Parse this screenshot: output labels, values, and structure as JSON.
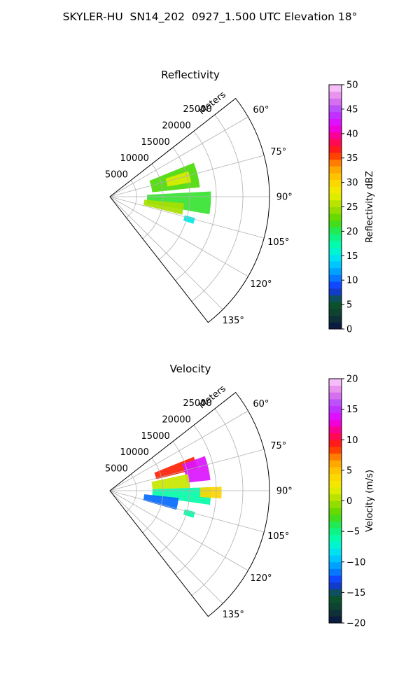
{
  "figure_title": "SKYLER-HU  SN14_202  0927_1.500 UTC Elevation 18°",
  "chart_data": [
    {
      "type": "polar-sector",
      "title": "Reflectivity",
      "range_axis_label": "Meters",
      "range_ticks": [
        5000,
        10000,
        15000,
        20000,
        25000
      ],
      "range_max": 30000,
      "azimuth_range_deg": [
        52,
        142
      ],
      "azimuth_tick_labels": [
        "60°",
        "75°",
        "90°",
        "105°",
        "120°",
        "135°"
      ],
      "azimuth_tick_values": [
        60,
        75,
        90,
        105,
        120,
        135
      ],
      "grid": true,
      "colorbar": {
        "label": "Reflectivity dBZ",
        "min": 0,
        "max": 50,
        "tick_values": [
          0,
          5,
          10,
          15,
          20,
          25,
          30,
          35,
          40,
          45,
          50
        ],
        "tick_labels": [
          "0",
          "5",
          "10",
          "15",
          "20",
          "25",
          "30",
          "35",
          "40",
          "45",
          "50"
        ],
        "color_stops": [
          "#0a1246",
          "#0f3b33",
          "#0a5a2a",
          "#1430ff",
          "#0090ff",
          "#00d8ff",
          "#00ffc0",
          "#12f070",
          "#52d800",
          "#a8e000",
          "#f0f000",
          "#ffd000",
          "#ff9a00",
          "#ff2400",
          "#ff0070",
          "#ee00ff",
          "#b040ff",
          "#e080ea",
          "#ffd0ff"
        ]
      },
      "echo_regions": [
        {
          "az": [
            68,
            84
          ],
          "range": [
            8000,
            17000
          ],
          "value": 22
        },
        {
          "az": [
            72,
            80
          ],
          "range": [
            11000,
            15500
          ],
          "value": 27
        },
        {
          "az": [
            87,
            100
          ],
          "range": [
            7000,
            19000
          ],
          "value": 21
        },
        {
          "az": [
            95,
            104
          ],
          "range": [
            6500,
            14000
          ],
          "value": 25
        },
        {
          "az": [
            104,
            108
          ],
          "range": [
            14500,
            16500
          ],
          "value": 15
        }
      ]
    },
    {
      "type": "polar-sector",
      "title": "Velocity",
      "range_axis_label": "Meters",
      "range_ticks": [
        5000,
        10000,
        15000,
        20000,
        25000
      ],
      "range_max": 30000,
      "azimuth_range_deg": [
        52,
        142
      ],
      "azimuth_tick_labels": [
        "60°",
        "75°",
        "90°",
        "105°",
        "120°",
        "135°"
      ],
      "azimuth_tick_values": [
        60,
        75,
        90,
        105,
        120,
        135
      ],
      "grid": true,
      "colorbar": {
        "label": "Velocity (m/s)",
        "min": -20,
        "max": 20,
        "tick_values": [
          -20,
          -15,
          -10,
          -5,
          0,
          5,
          10,
          15,
          20
        ],
        "tick_labels": [
          "−20",
          "−15",
          "−10",
          "−5",
          "0",
          "5",
          "10",
          "15",
          "20"
        ],
        "color_stops": [
          "#0a1246",
          "#0f3b33",
          "#0a5a2a",
          "#1430ff",
          "#0090ff",
          "#00d8ff",
          "#00ffc0",
          "#12f070",
          "#52d800",
          "#a8e000",
          "#f0f000",
          "#ffd000",
          "#ff9a00",
          "#ff2400",
          "#ff0070",
          "#ee00ff",
          "#b040ff",
          "#e080ea",
          "#ffd0ff"
        ]
      },
      "echo_regions": [
        {
          "az": [
            68,
            76
          ],
          "range": [
            9000,
            17000
          ],
          "value": 9
        },
        {
          "az": [
            70,
            84
          ],
          "range": [
            14500,
            19000
          ],
          "value": 14
        },
        {
          "az": [
            78,
            88
          ],
          "range": [
            8000,
            15000
          ],
          "value": 1
        },
        {
          "az": [
            88,
            98
          ],
          "range": [
            8000,
            19000
          ],
          "value": -6
        },
        {
          "az": [
            88,
            94
          ],
          "range": [
            17000,
            21000
          ],
          "value": 4
        },
        {
          "az": [
            96,
            106
          ],
          "range": [
            6500,
            13000
          ],
          "value": -12
        },
        {
          "az": [
            104,
            108
          ],
          "range": [
            14500,
            16500
          ],
          "value": -6
        }
      ]
    }
  ]
}
